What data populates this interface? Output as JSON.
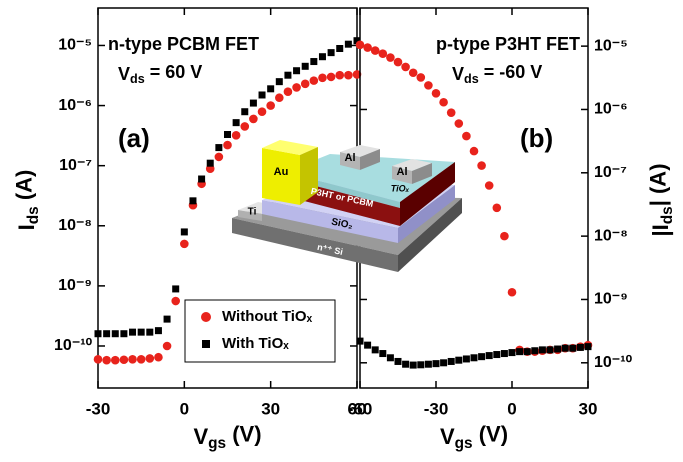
{
  "chart_data": [
    {
      "type": "scatter",
      "title": "n-type PCBM FET",
      "annotations": [
        {
          "text": "V",
          "sub": "ds",
          "rest": " = 60 V"
        },
        {
          "text": "(a)"
        }
      ],
      "xlabel": {
        "text": "V",
        "sub": "gs",
        "rest": " (V)"
      },
      "ylabel": {
        "text": "I",
        "sub": "ds",
        "rest": " (A)"
      },
      "yaxis": "left",
      "yscale": "log",
      "legend": "lower-right",
      "xlim": [
        -30,
        60
      ],
      "xticks": [
        -30,
        0,
        30,
        60
      ],
      "ylim": [
        2e-11,
        4.2e-05
      ],
      "yticks": [
        {
          "value": 1e-10,
          "label": "10⁻¹⁰"
        },
        {
          "value": 1e-09,
          "label": "10⁻⁹"
        },
        {
          "value": 1e-08,
          "label": "10⁻⁸"
        },
        {
          "value": 1e-07,
          "label": "10⁻⁷"
        },
        {
          "value": 1e-06,
          "label": "10⁻⁶"
        },
        {
          "value": 1e-05,
          "label": "10⁻⁵"
        }
      ],
      "x": [
        -30,
        -27,
        -24,
        -21,
        -18,
        -15,
        -12,
        -9,
        -6,
        -3,
        0,
        3,
        6,
        9,
        12,
        15,
        18,
        21,
        24,
        27,
        30,
        33,
        36,
        39,
        42,
        45,
        48,
        51,
        54,
        57,
        60
      ],
      "series": [
        {
          "name": "Without TiOₓ",
          "color": "#e8231c",
          "marker": "circle",
          "values": [
            6e-11,
            5.8e-11,
            5.8e-11,
            5.9e-11,
            6e-11,
            6e-11,
            6.2e-11,
            6.5e-11,
            1e-10,
            5.6e-10,
            5e-09,
            2.2e-08,
            5e-08,
            8.9e-08,
            1.4e-07,
            2.2e-07,
            3.2e-07,
            4.5e-07,
            6e-07,
            7.9e-07,
            1e-06,
            1.35e-06,
            1.7e-06,
            2e-06,
            2.3e-06,
            2.6e-06,
            2.9e-06,
            3e-06,
            3.2e-06,
            3.2e-06,
            3.3e-06
          ]
        },
        {
          "name": "With TiOₓ",
          "color": "#000000",
          "marker": "square",
          "values": [
            1.6e-10,
            1.6e-10,
            1.6e-10,
            1.6e-10,
            1.7e-10,
            1.7e-10,
            1.7e-10,
            1.8e-10,
            2.8e-10,
            8.9e-10,
            7.9e-09,
            2.6e-08,
            6e-08,
            1.1e-07,
            2e-07,
            3.3e-07,
            5.2e-07,
            7.9e-07,
            1.1e-06,
            1.5e-06,
            1.9e-06,
            2.5e-06,
            3.2e-06,
            3.8e-06,
            4.5e-06,
            5.4e-06,
            6.5e-06,
            7.6e-06,
            8.9e-06,
            1.05e-05,
            1.2e-05
          ]
        }
      ]
    },
    {
      "type": "scatter",
      "title": "p-type P3HT FET",
      "annotations": [
        {
          "text": "V",
          "sub": "ds",
          "rest": " = -60 V"
        },
        {
          "text": "(b)"
        }
      ],
      "xlabel": {
        "text": "V",
        "sub": "gs",
        "rest": " (V)"
      },
      "ylabel": {
        "text": "|I",
        "sub": "ds",
        "rest": "| (A)"
      },
      "yaxis": "right",
      "yscale": "log",
      "xlim": [
        -60,
        30
      ],
      "xticks": [
        -60,
        -30,
        0,
        30
      ],
      "ylim": [
        4e-11,
        4e-05
      ],
      "yticks": [
        {
          "value": 1e-10,
          "label": "10⁻¹⁰"
        },
        {
          "value": 1e-09,
          "label": "10⁻⁹"
        },
        {
          "value": 1e-08,
          "label": "10⁻⁸"
        },
        {
          "value": 1e-07,
          "label": "10⁻⁷"
        },
        {
          "value": 1e-06,
          "label": "10⁻⁶"
        },
        {
          "value": 1e-05,
          "label": "10⁻⁵"
        }
      ],
      "x": [
        -60,
        -57,
        -54,
        -51,
        -48,
        -45,
        -42,
        -39,
        -36,
        -33,
        -30,
        -27,
        -24,
        -21,
        -18,
        -15,
        -12,
        -9,
        -6,
        -3,
        0,
        3,
        6,
        9,
        12,
        15,
        18,
        21,
        24,
        27,
        30
      ],
      "series": [
        {
          "color": "#e8231c",
          "marker": "circle",
          "values": [
            1.05e-05,
            9.5e-06,
            8.5e-06,
            7.6e-06,
            6.6e-06,
            5.6e-06,
            4.7e-06,
            3.8e-06,
            3.2e-06,
            2.4e-06,
            1.8e-06,
            1.3e-06,
            8.9e-07,
            6e-07,
            3.8e-07,
            2.2e-07,
            1.3e-07,
            6.3e-08,
            2.8e-08,
            1e-08,
            1.3e-09,
            1.6e-10,
            1.5e-10,
            1.5e-10,
            1.55e-10,
            1.6e-10,
            1.6e-10,
            1.7e-10,
            1.7e-10,
            1.8e-10,
            1.9e-10
          ]
        },
        {
          "color": "#000000",
          "marker": "square",
          "values": [
            2.2e-10,
            1.9e-10,
            1.6e-10,
            1.4e-10,
            1.2e-10,
            1.05e-10,
            9.5e-11,
            9.2e-11,
            9.3e-11,
            9.5e-11,
            9.7e-11,
            1e-10,
            1.05e-10,
            1.1e-10,
            1.15e-10,
            1.2e-10,
            1.25e-10,
            1.3e-10,
            1.35e-10,
            1.4e-10,
            1.45e-10,
            1.5e-10,
            1.5e-10,
            1.55e-10,
            1.6e-10,
            1.6e-10,
            1.65e-10,
            1.7e-10,
            1.7e-10,
            1.75e-10,
            1.8e-10
          ]
        }
      ]
    }
  ],
  "inset": {
    "labels": [
      "Au",
      "Al",
      "Al",
      "TiOₓ",
      "P3HT or PCBM",
      "SiO₂",
      "Ti",
      "n⁺⁺ Si"
    ]
  }
}
